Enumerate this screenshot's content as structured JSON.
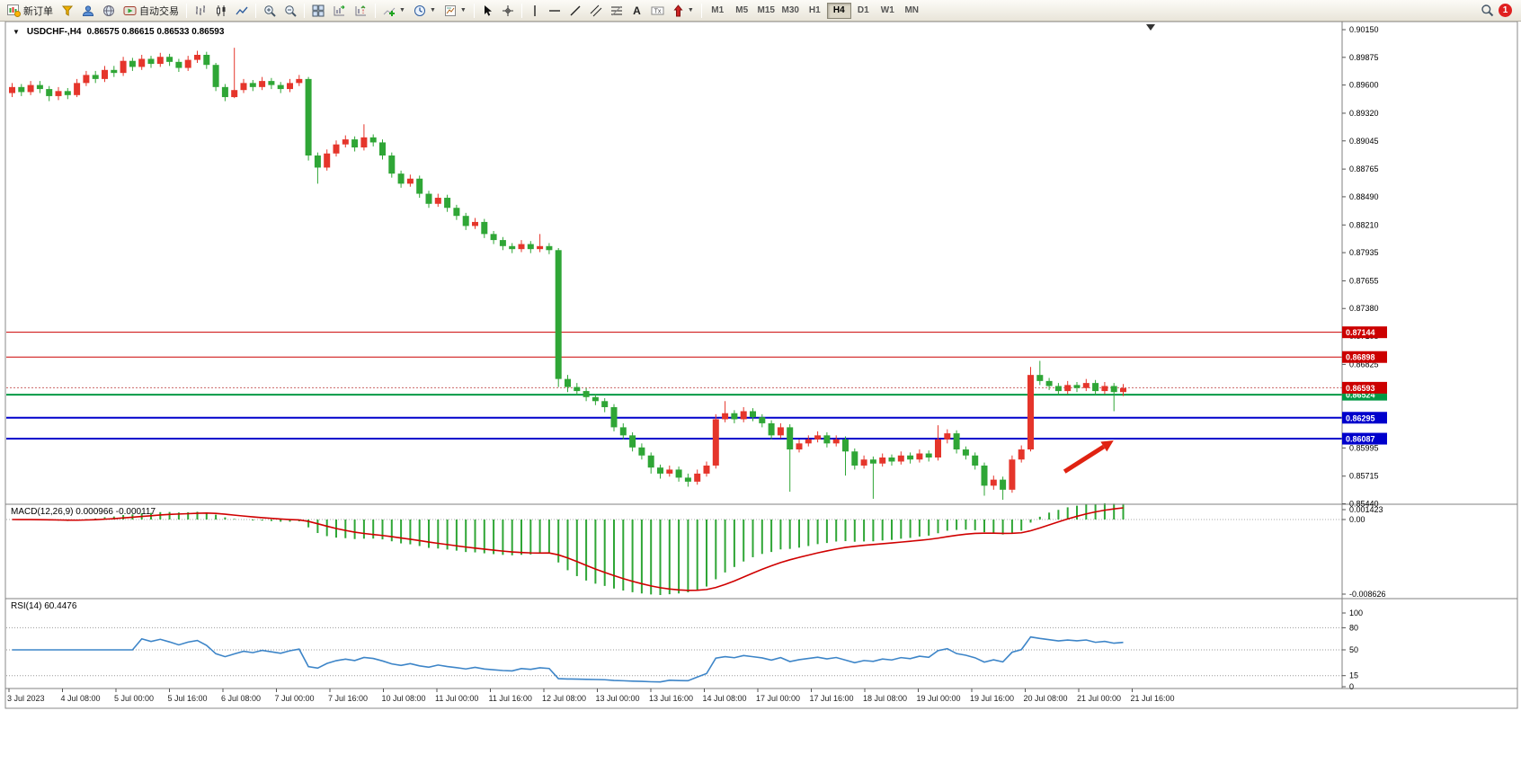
{
  "toolbar": {
    "new_order_label": "新订单",
    "auto_trading_label": "自动交易",
    "timeframes": [
      "M1",
      "M5",
      "M15",
      "M30",
      "H1",
      "H4",
      "D1",
      "W1",
      "MN"
    ],
    "active_timeframe": "H4",
    "notification_badge": "1"
  },
  "window": {
    "title": "USDCHF-,H4",
    "ohlc": "0.86575 0.86615 0.86533 0.86593"
  },
  "chart_data": {
    "type": "candlestick",
    "symbol": "USDCHF",
    "period": "H4",
    "price_axis_ticks": [
      "0.90150",
      "0.89875",
      "0.89600",
      "0.89320",
      "0.89045",
      "0.88765",
      "0.88490",
      "0.88210",
      "0.87935",
      "0.87655",
      "0.87380",
      "0.87105",
      "0.86825",
      "0.86550",
      "0.86270",
      "0.85995",
      "0.85715",
      "0.85440"
    ],
    "price_range": {
      "top": 0.9015,
      "bottom": 0.8544
    },
    "time_labels": [
      "3 Jul 2023",
      "4 Jul 08:00",
      "5 Jul 00:00",
      "5 Jul 16:00",
      "6 Jul 08:00",
      "7 Jul 00:00",
      "7 Jul 16:00",
      "10 Jul 08:00",
      "11 Jul 00:00",
      "11 Jul 16:00",
      "12 Jul 08:00",
      "13 Jul 00:00",
      "13 Jul 16:00",
      "14 Jul 08:00",
      "17 Jul 00:00",
      "17 Jul 16:00",
      "18 Jul 08:00",
      "19 Jul 00:00",
      "19 Jul 16:00",
      "20 Jul 08:00",
      "21 Jul 00:00",
      "21 Jul 16:00"
    ],
    "horizontal_lines": [
      {
        "price": 0.87144,
        "label": "0.87144",
        "color": "#cc0000",
        "width": 1
      },
      {
        "price": 0.86898,
        "label": "0.86898",
        "color": "#cc0000",
        "width": 1
      },
      {
        "price": 0.86524,
        "label": "0.86524",
        "color": "#009944",
        "width": 2
      },
      {
        "price": 0.86295,
        "label": "0.86295",
        "color": "#0000cc",
        "width": 2
      },
      {
        "price": 0.86087,
        "label": "0.86087",
        "color": "#0000cc",
        "width": 2
      }
    ],
    "bid_price": {
      "price": 0.86593,
      "label": "0.86593",
      "color": "#cc0000"
    },
    "colors": {
      "up": "#e5352b",
      "down": "#2fa636"
    },
    "candles": [
      [
        0.8952,
        0.8962,
        0.8948,
        0.8958
      ],
      [
        0.8958,
        0.8961,
        0.8949,
        0.8953
      ],
      [
        0.8953,
        0.8964,
        0.895,
        0.896
      ],
      [
        0.896,
        0.8964,
        0.8952,
        0.8956
      ],
      [
        0.8956,
        0.8959,
        0.8944,
        0.8949
      ],
      [
        0.8949,
        0.8958,
        0.8945,
        0.8954
      ],
      [
        0.8954,
        0.8957,
        0.8946,
        0.895
      ],
      [
        0.895,
        0.8966,
        0.8948,
        0.8962
      ],
      [
        0.8962,
        0.8974,
        0.8959,
        0.897
      ],
      [
        0.897,
        0.8974,
        0.8962,
        0.8966
      ],
      [
        0.8966,
        0.8979,
        0.8963,
        0.8975
      ],
      [
        0.8975,
        0.8979,
        0.8968,
        0.8972
      ],
      [
        0.8972,
        0.8988,
        0.8969,
        0.8984
      ],
      [
        0.8984,
        0.8987,
        0.8974,
        0.8978
      ],
      [
        0.8978,
        0.899,
        0.8975,
        0.8986
      ],
      [
        0.8986,
        0.8989,
        0.8977,
        0.8981
      ],
      [
        0.8981,
        0.8992,
        0.8978,
        0.8988
      ],
      [
        0.8988,
        0.8991,
        0.8979,
        0.8983
      ],
      [
        0.8983,
        0.8986,
        0.8973,
        0.8977
      ],
      [
        0.8977,
        0.8989,
        0.8974,
        0.8985
      ],
      [
        0.8985,
        0.8994,
        0.8982,
        0.899
      ],
      [
        0.899,
        0.8993,
        0.8976,
        0.898
      ],
      [
        0.898,
        0.8982,
        0.8954,
        0.8958
      ],
      [
        0.8958,
        0.8961,
        0.8944,
        0.8948
      ],
      [
        0.8948,
        0.8997,
        0.8947,
        0.8955
      ],
      [
        0.8955,
        0.8966,
        0.8952,
        0.8962
      ],
      [
        0.8962,
        0.8965,
        0.8954,
        0.8958
      ],
      [
        0.8958,
        0.8968,
        0.8955,
        0.8964
      ],
      [
        0.8964,
        0.8967,
        0.8956,
        0.896
      ],
      [
        0.896,
        0.8963,
        0.8952,
        0.8956
      ],
      [
        0.8956,
        0.8966,
        0.8953,
        0.8962
      ],
      [
        0.8962,
        0.897,
        0.8959,
        0.8966
      ],
      [
        0.8966,
        0.8968,
        0.8885,
        0.889
      ],
      [
        0.889,
        0.8893,
        0.8862,
        0.8878
      ],
      [
        0.8878,
        0.8896,
        0.8875,
        0.8892
      ],
      [
        0.8892,
        0.8905,
        0.8889,
        0.8901
      ],
      [
        0.8901,
        0.891,
        0.8898,
        0.8906
      ],
      [
        0.8906,
        0.8909,
        0.8894,
        0.8898
      ],
      [
        0.8898,
        0.8921,
        0.8895,
        0.8908
      ],
      [
        0.8908,
        0.8911,
        0.8899,
        0.8903
      ],
      [
        0.8903,
        0.8906,
        0.8886,
        0.889
      ],
      [
        0.889,
        0.8893,
        0.8868,
        0.8872
      ],
      [
        0.8872,
        0.8875,
        0.8858,
        0.8862
      ],
      [
        0.8862,
        0.8871,
        0.8859,
        0.8867
      ],
      [
        0.8867,
        0.887,
        0.8848,
        0.8852
      ],
      [
        0.8852,
        0.8855,
        0.8838,
        0.8842
      ],
      [
        0.8842,
        0.8852,
        0.8839,
        0.8848
      ],
      [
        0.8848,
        0.8851,
        0.8834,
        0.8838
      ],
      [
        0.8838,
        0.8841,
        0.8826,
        0.883
      ],
      [
        0.883,
        0.8833,
        0.8816,
        0.882
      ],
      [
        0.882,
        0.8828,
        0.8817,
        0.8824
      ],
      [
        0.8824,
        0.8827,
        0.8808,
        0.8812
      ],
      [
        0.8812,
        0.8815,
        0.8802,
        0.8806
      ],
      [
        0.8806,
        0.8809,
        0.8796,
        0.88
      ],
      [
        0.88,
        0.8803,
        0.8793,
        0.8797
      ],
      [
        0.8797,
        0.8806,
        0.8794,
        0.8802
      ],
      [
        0.8802,
        0.8805,
        0.8793,
        0.8797
      ],
      [
        0.8797,
        0.8812,
        0.8794,
        0.88
      ],
      [
        0.88,
        0.8803,
        0.8792,
        0.8796
      ],
      [
        0.8796,
        0.8798,
        0.866,
        0.8668
      ],
      [
        0.8668,
        0.8672,
        0.8655,
        0.866
      ],
      [
        0.866,
        0.8664,
        0.8652,
        0.8656
      ],
      [
        0.8656,
        0.8659,
        0.8646,
        0.865
      ],
      [
        0.865,
        0.8653,
        0.8642,
        0.8646
      ],
      [
        0.8646,
        0.8649,
        0.8635,
        0.864
      ],
      [
        0.864,
        0.8643,
        0.8616,
        0.862
      ],
      [
        0.862,
        0.8624,
        0.8608,
        0.8612
      ],
      [
        0.8612,
        0.8615,
        0.8596,
        0.86
      ],
      [
        0.86,
        0.8604,
        0.8588,
        0.8592
      ],
      [
        0.8592,
        0.8595,
        0.8574,
        0.858
      ],
      [
        0.858,
        0.8583,
        0.8569,
        0.8574
      ],
      [
        0.8574,
        0.8582,
        0.8571,
        0.8578
      ],
      [
        0.8578,
        0.8581,
        0.8566,
        0.857
      ],
      [
        0.857,
        0.8574,
        0.8561,
        0.8566
      ],
      [
        0.8566,
        0.8578,
        0.8563,
        0.8574
      ],
      [
        0.8574,
        0.8586,
        0.8571,
        0.8582
      ],
      [
        0.8582,
        0.8633,
        0.8579,
        0.8628
      ],
      [
        0.8628,
        0.8646,
        0.8625,
        0.8634
      ],
      [
        0.8634,
        0.8637,
        0.8624,
        0.8628
      ],
      [
        0.8628,
        0.864,
        0.8625,
        0.8636
      ],
      [
        0.8636,
        0.8639,
        0.8626,
        0.863
      ],
      [
        0.863,
        0.8633,
        0.862,
        0.8624
      ],
      [
        0.8624,
        0.8627,
        0.8608,
        0.8612
      ],
      [
        0.8612,
        0.8624,
        0.8609,
        0.862
      ],
      [
        0.862,
        0.8623,
        0.8556,
        0.8598
      ],
      [
        0.8598,
        0.8608,
        0.8595,
        0.8604
      ],
      [
        0.8604,
        0.8612,
        0.8601,
        0.8608
      ],
      [
        0.8608,
        0.8616,
        0.8605,
        0.8612
      ],
      [
        0.8612,
        0.8615,
        0.86,
        0.8604
      ],
      [
        0.8604,
        0.8612,
        0.8601,
        0.8608
      ],
      [
        0.8608,
        0.8611,
        0.8572,
        0.8596
      ],
      [
        0.8596,
        0.8599,
        0.8578,
        0.8582
      ],
      [
        0.8582,
        0.8592,
        0.8579,
        0.8588
      ],
      [
        0.8588,
        0.8591,
        0.8549,
        0.8584
      ],
      [
        0.8584,
        0.8594,
        0.8581,
        0.859
      ],
      [
        0.859,
        0.8593,
        0.8582,
        0.8586
      ],
      [
        0.8586,
        0.8596,
        0.8583,
        0.8592
      ],
      [
        0.8592,
        0.8595,
        0.8584,
        0.8588
      ],
      [
        0.8588,
        0.8598,
        0.8585,
        0.8594
      ],
      [
        0.8594,
        0.8597,
        0.8586,
        0.859
      ],
      [
        0.859,
        0.8622,
        0.8587,
        0.8608
      ],
      [
        0.8608,
        0.8618,
        0.8604,
        0.8614
      ],
      [
        0.8614,
        0.8617,
        0.8594,
        0.8598
      ],
      [
        0.8598,
        0.8601,
        0.8588,
        0.8592
      ],
      [
        0.8592,
        0.8595,
        0.8578,
        0.8582
      ],
      [
        0.8582,
        0.8585,
        0.8552,
        0.8562
      ],
      [
        0.8562,
        0.8572,
        0.8558,
        0.8568
      ],
      [
        0.8568,
        0.8571,
        0.8548,
        0.8558
      ],
      [
        0.8558,
        0.8592,
        0.8555,
        0.8588
      ],
      [
        0.8588,
        0.8602,
        0.8585,
        0.8598
      ],
      [
        0.8598,
        0.868,
        0.8596,
        0.8672
      ],
      [
        0.8672,
        0.8686,
        0.8662,
        0.8666
      ],
      [
        0.8666,
        0.8669,
        0.8657,
        0.8661
      ],
      [
        0.8661,
        0.8664,
        0.8652,
        0.8656
      ],
      [
        0.8656,
        0.8666,
        0.8653,
        0.8662
      ],
      [
        0.8662,
        0.8665,
        0.8655,
        0.8659
      ],
      [
        0.8659,
        0.8668,
        0.8656,
        0.8664
      ],
      [
        0.8664,
        0.8667,
        0.8652,
        0.8656
      ],
      [
        0.8656,
        0.8665,
        0.8653,
        0.8661
      ],
      [
        0.8661,
        0.8664,
        0.8636,
        0.8655
      ],
      [
        0.8655,
        0.8663,
        0.8651,
        0.8659
      ]
    ],
    "indicators": {
      "macd": {
        "label": "MACD(12,26,9) 0.000966 -0.000117",
        "params": [
          12,
          26,
          9
        ],
        "current_macd": "0.000966",
        "current_signal": "-0.000117",
        "axis_labels": [
          "0.001423",
          "0.00",
          "-0.008626"
        ],
        "histogram_color": "#2fa636",
        "signal_color": "#d00000"
      },
      "rsi": {
        "label": "RSI(14) 60.4476",
        "period": 14,
        "current": "60.4476",
        "axis_labels": [
          "100",
          "80",
          "50",
          "15",
          "0"
        ],
        "levels": [
          80,
          50,
          15
        ],
        "line_color": "#3d85c8"
      }
    },
    "annotations": [
      {
        "type": "arrow",
        "color": "#e02211",
        "from": [
          114,
          0.8576
        ],
        "to": [
          119.3,
          0.8607
        ]
      }
    ]
  }
}
